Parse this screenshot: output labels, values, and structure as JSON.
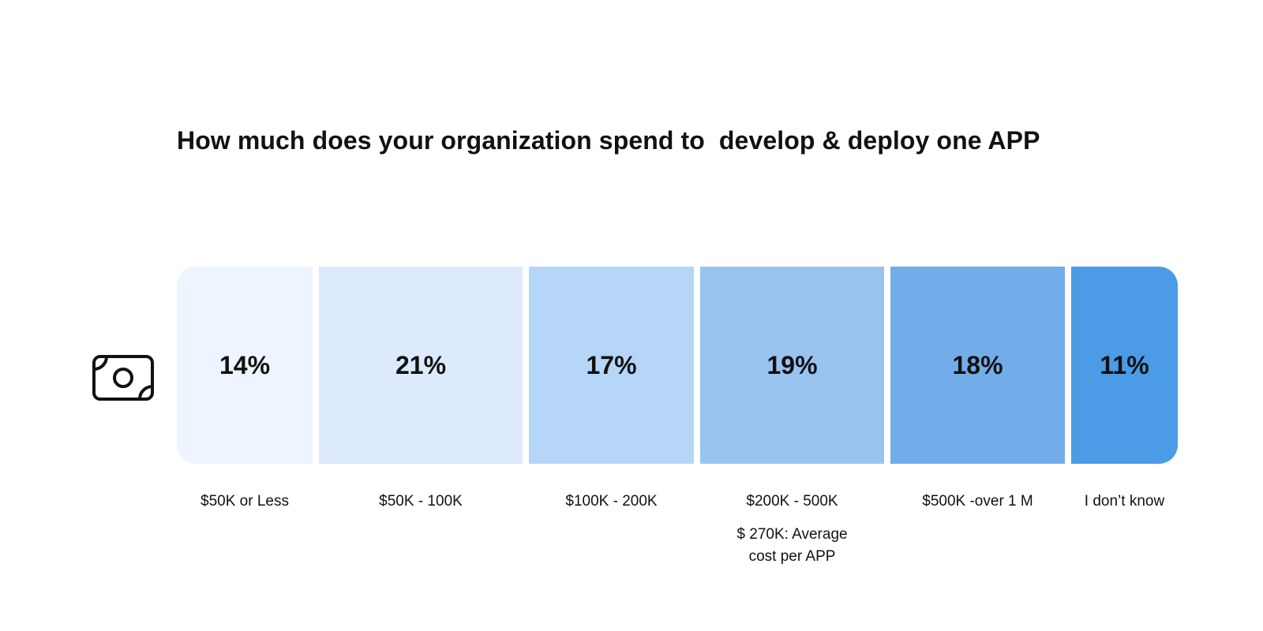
{
  "chart_data": {
    "type": "bar",
    "title": "How much does your organization spend to  develop & deploy one APP",
    "categories": [
      "$50K or Less",
      "$50K - 100K",
      "$100K - 200K",
      "$200K - 500K",
      "$500K -over 1 M",
      "I don’t know"
    ],
    "values": [
      14,
      21,
      17,
      19,
      18,
      11
    ],
    "value_labels": [
      "14%",
      "21%",
      "17%",
      "19%",
      "18%",
      "11%"
    ],
    "colors": [
      "#eef5fe",
      "#dceafb",
      "#b6d6f7",
      "#99c4f0",
      "#73ade9",
      "#4b9be6"
    ],
    "annotation": {
      "category": "$200K - 500K",
      "text": "$ 270K: Average cost per APP"
    },
    "icon": "money-bill-icon"
  }
}
